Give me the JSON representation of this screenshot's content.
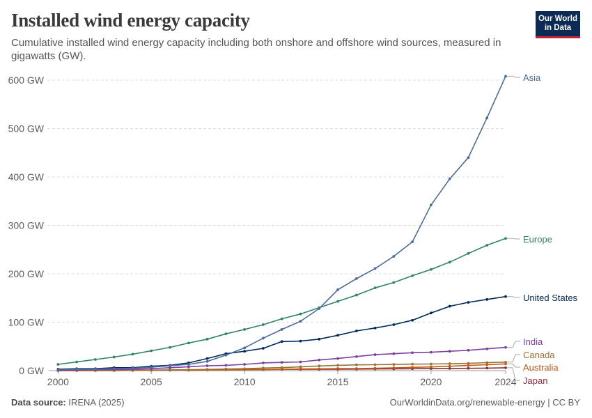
{
  "header": {
    "title": "Installed wind energy capacity",
    "subtitle": "Cumulative installed wind energy capacity including both onshore and offshore wind sources, measured in gigawatts (GW).",
    "logo_line1": "Our World",
    "logo_line2": "in Data"
  },
  "footer": {
    "source_label": "Data source:",
    "source_value": "IRENA (2025)",
    "link_text": "OurWorldinData.org/renewable-energy",
    "license_text": "| CC BY"
  },
  "colors": {
    "gridline": "#dddddd",
    "axis": "#999999",
    "text": "#5b5b5b"
  },
  "chart_data": {
    "type": "line",
    "title": "Installed wind energy capacity",
    "xlabel": "",
    "ylabel": "",
    "xlim": [
      2000,
      2024
    ],
    "ylim": [
      0,
      600
    ],
    "grid": true,
    "legend_placement": "right (inline labels at line ends)",
    "y_ticks": [
      0,
      100,
      200,
      300,
      400,
      500,
      600
    ],
    "y_tick_labels": [
      "0 GW",
      "100 GW",
      "200 GW",
      "300 GW",
      "400 GW",
      "500 GW",
      "600 GW"
    ],
    "x_ticks": [
      2000,
      2005,
      2010,
      2015,
      2020,
      2024
    ],
    "x_tick_labels": [
      "2000",
      "2005",
      "2010",
      "2015",
      "2020",
      "2024"
    ],
    "x": [
      2000,
      2001,
      2002,
      2003,
      2004,
      2005,
      2006,
      2007,
      2008,
      2009,
      2010,
      2011,
      2012,
      2013,
      2014,
      2015,
      2016,
      2017,
      2018,
      2019,
      2020,
      2021,
      2022,
      2023,
      2024
    ],
    "series": [
      {
        "name": "Asia",
        "color": "#4c6a9c",
        "values": [
          2,
          3,
          3,
          4,
          5,
          7,
          10,
          13,
          19,
          32,
          47,
          67,
          85,
          102,
          128,
          167,
          190,
          211,
          236,
          266,
          342,
          396,
          440,
          522,
          608
        ]
      },
      {
        "name": "Europe",
        "color": "#2c8465",
        "values": [
          13,
          18,
          23,
          28,
          34,
          41,
          48,
          57,
          65,
          76,
          85,
          95,
          107,
          117,
          130,
          143,
          156,
          171,
          182,
          196,
          209,
          224,
          242,
          259,
          273
        ]
      },
      {
        "name": "United States",
        "color": "#00295b",
        "values": [
          3,
          4,
          4,
          6,
          6,
          9,
          11,
          16,
          25,
          35,
          40,
          46,
          60,
          61,
          65,
          73,
          82,
          88,
          95,
          104,
          119,
          133,
          141,
          147,
          153
        ]
      },
      {
        "name": "India",
        "color": "#7d3ea1",
        "values": [
          1,
          1.5,
          2,
          2,
          3,
          4,
          6,
          8,
          10,
          11,
          13,
          16,
          17,
          18,
          22,
          25,
          29,
          33,
          35,
          37,
          38,
          40,
          42,
          45,
          48
        ]
      },
      {
        "name": "Canada",
        "color": "#9a7233",
        "values": [
          0.1,
          0.2,
          0.2,
          0.3,
          0.4,
          0.7,
          1.4,
          1.8,
          2.4,
          3.3,
          4,
          5.3,
          6.2,
          7.8,
          9.7,
          11,
          12,
          12.2,
          12.8,
          13.4,
          13.6,
          14.3,
          15,
          16.5,
          17.5
        ]
      },
      {
        "name": "Australia",
        "color": "#c05917",
        "values": [
          0.03,
          0.07,
          0.1,
          0.2,
          0.4,
          0.7,
          0.8,
          0.8,
          1.3,
          1.7,
          2,
          2.2,
          2.6,
          3.4,
          3.8,
          4.2,
          4.3,
          4.9,
          5.7,
          6.8,
          7.6,
          9.1,
          10.6,
          12.2,
          14
        ]
      },
      {
        "name": "Japan",
        "color": "#883039",
        "values": [
          0.1,
          0.3,
          0.4,
          0.6,
          0.9,
          1.1,
          1.4,
          1.6,
          1.9,
          2.1,
          2.3,
          2.4,
          2.6,
          2.7,
          2.8,
          3,
          3.2,
          3.4,
          3.6,
          3.9,
          4.2,
          4.5,
          4.8,
          5.2,
          5.9
        ]
      }
    ]
  }
}
